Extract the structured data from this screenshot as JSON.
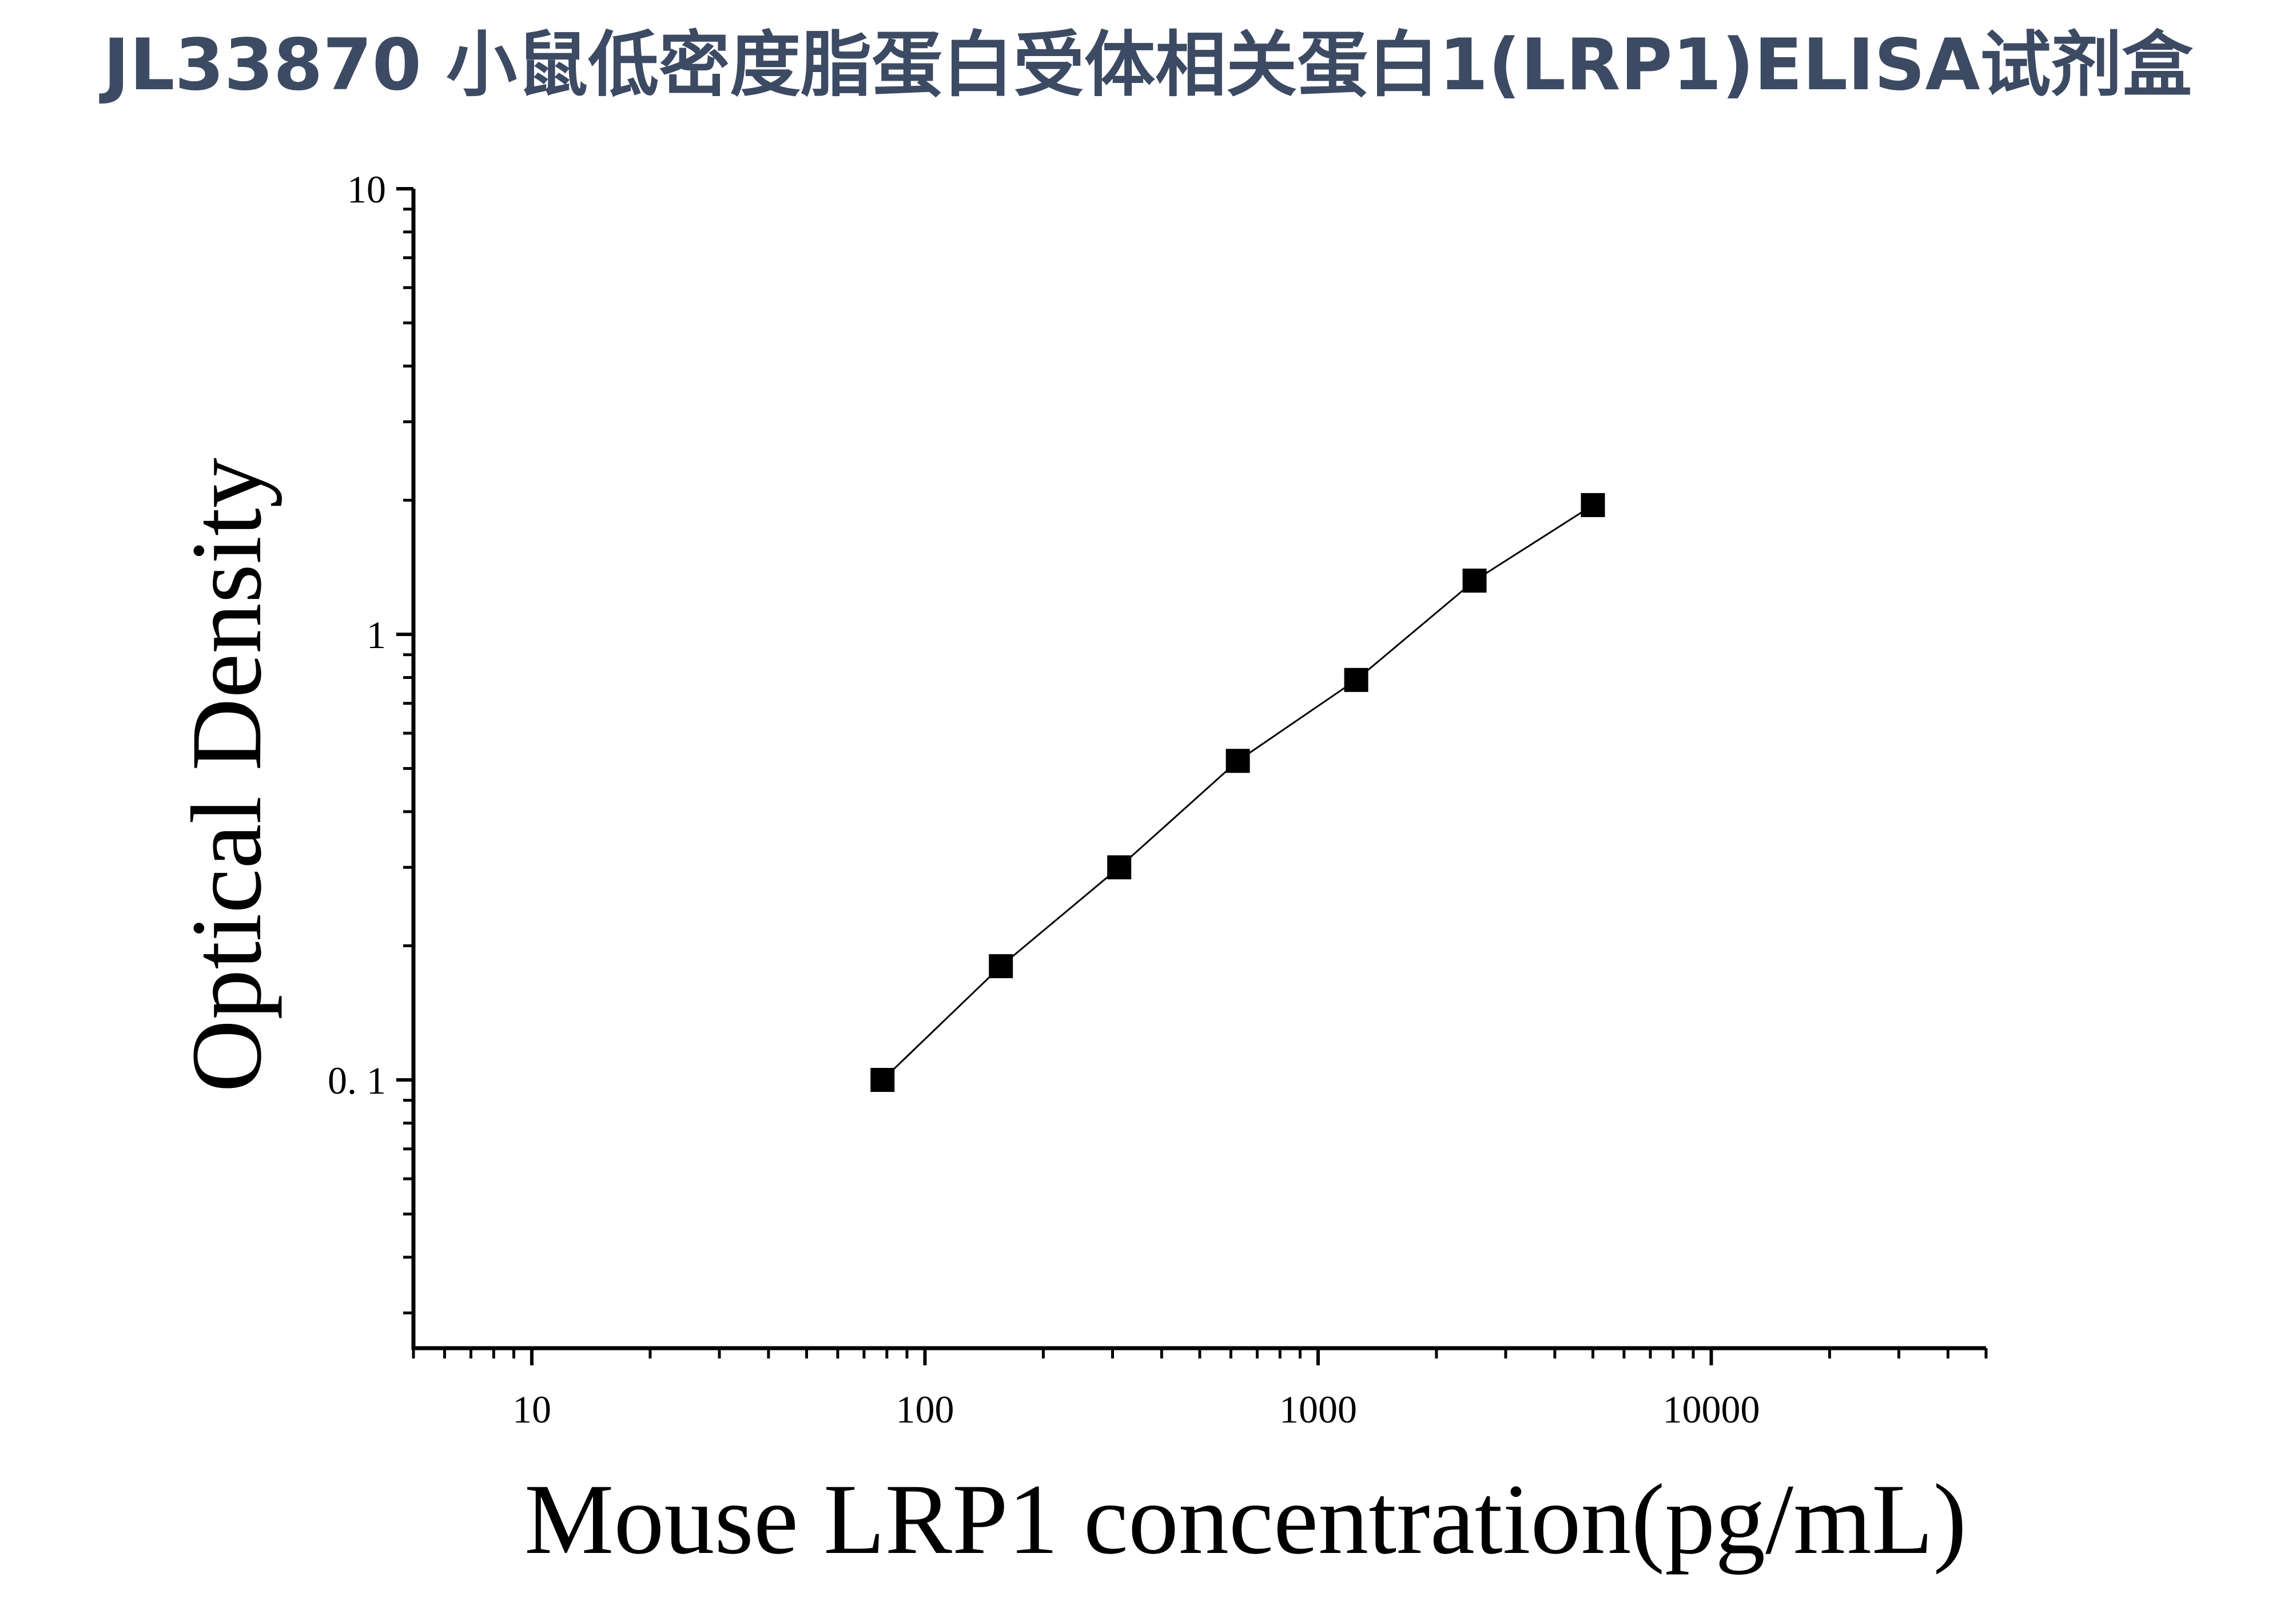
{
  "title": "JL33870 小鼠低密度脂蛋白受体相关蛋白1(LRP1)ELISA试剂盒",
  "chart_data": {
    "type": "scatter",
    "scale": {
      "x": "log",
      "y": "log"
    },
    "xlabel": "Mouse LRP1 concentration(pg/mL)",
    "ylabel": "Optical Density",
    "xlim": [
      5,
      50000
    ],
    "ylim": [
      0.025,
      10
    ],
    "x_ticks": [
      {
        "value": 10,
        "label": "10"
      },
      {
        "value": 100,
        "label": "100"
      },
      {
        "value": 1000,
        "label": "1000"
      },
      {
        "value": 10000,
        "label": "10000"
      }
    ],
    "y_ticks": [
      {
        "value": 0.1,
        "label": "0. 1"
      },
      {
        "value": 1,
        "label": "1"
      },
      {
        "value": 10,
        "label": "10"
      }
    ],
    "series": [
      {
        "x": [
          78,
          156,
          312,
          625,
          1250,
          2500,
          5000
        ],
        "y": [
          0.1,
          0.18,
          0.3,
          0.52,
          0.79,
          1.32,
          1.95
        ]
      }
    ],
    "fit_line": true,
    "marker": "square",
    "colors": {
      "marker": "#000000",
      "line": "#000000",
      "title": "#3d4a63"
    }
  }
}
